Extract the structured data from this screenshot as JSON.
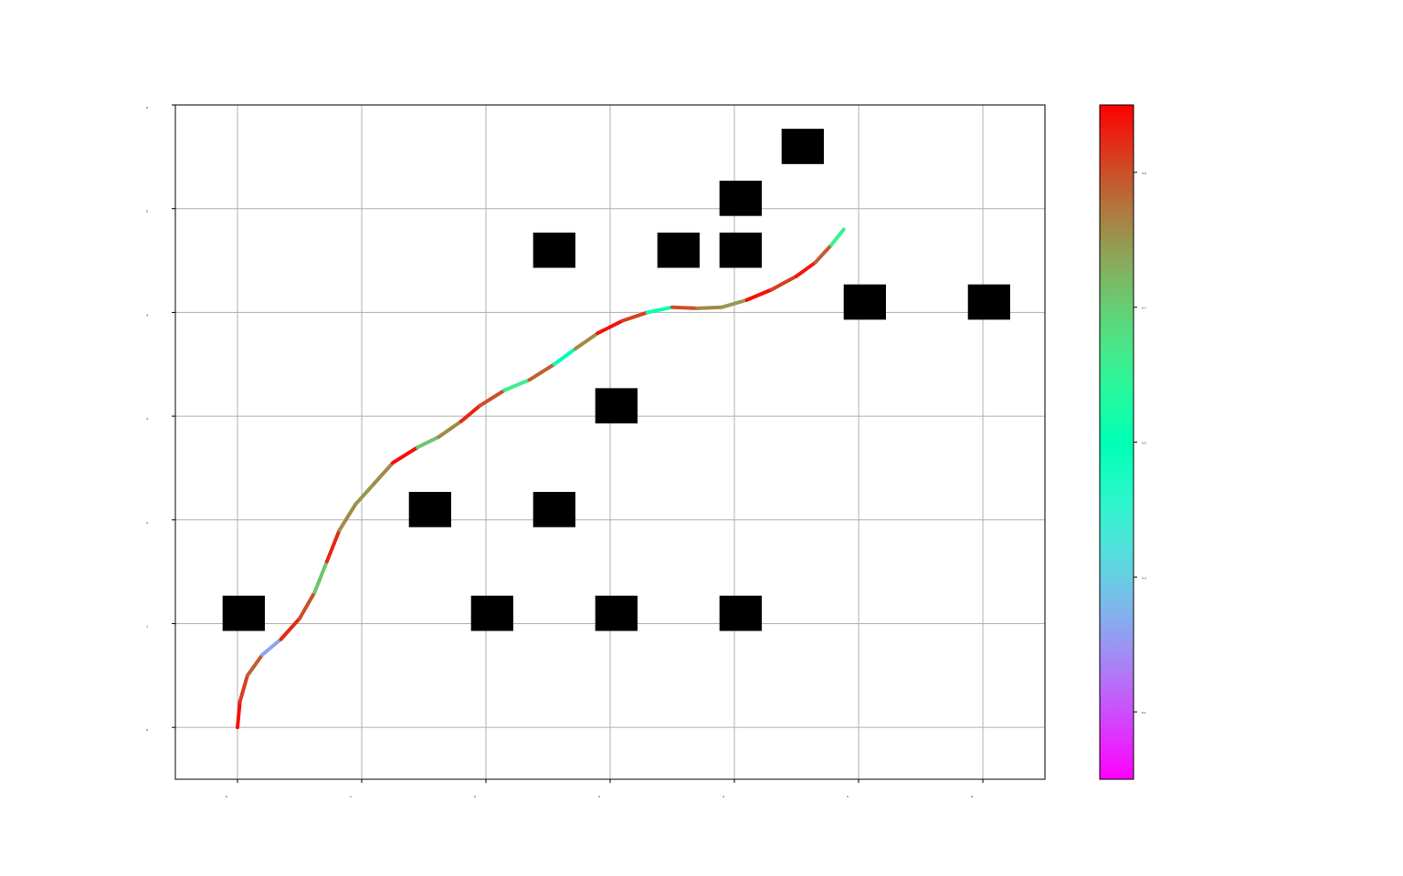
{
  "chart_data": {
    "type": "line",
    "title": "",
    "xlabel": "",
    "ylabel": "",
    "grid": true,
    "xlim": [
      -0.5,
      6.5
    ],
    "ylim": [
      -0.5,
      6.0
    ],
    "xticks": [
      0,
      1,
      2,
      3,
      4,
      5,
      6
    ],
    "yticks": [
      0,
      1,
      2,
      3,
      4,
      5,
      6
    ],
    "obstacles": [
      {
        "x": 0.05,
        "y": 1.1
      },
      {
        "x": 2.05,
        "y": 1.1
      },
      {
        "x": 3.05,
        "y": 1.1
      },
      {
        "x": 4.05,
        "y": 1.1
      },
      {
        "x": 1.55,
        "y": 2.1
      },
      {
        "x": 2.55,
        "y": 2.1
      },
      {
        "x": 3.05,
        "y": 3.1
      },
      {
        "x": 5.05,
        "y": 4.1
      },
      {
        "x": 6.05,
        "y": 4.1
      },
      {
        "x": 2.55,
        "y": 4.6
      },
      {
        "x": 3.55,
        "y": 4.6
      },
      {
        "x": 4.05,
        "y": 4.6
      },
      {
        "x": 4.05,
        "y": 5.1
      },
      {
        "x": 4.55,
        "y": 5.6
      }
    ],
    "path": {
      "x": [
        0.0,
        0.02,
        0.08,
        0.2,
        0.35,
        0.5,
        0.62,
        0.72,
        0.82,
        0.95,
        1.1,
        1.25,
        1.45,
        1.62,
        1.8,
        1.95,
        2.15,
        2.35,
        2.55,
        2.72,
        2.9,
        3.1,
        3.3,
        3.5,
        3.7,
        3.9,
        4.1,
        4.3,
        4.5,
        4.65,
        4.78,
        4.88
      ],
      "y": [
        0.0,
        0.25,
        0.5,
        0.7,
        0.85,
        1.05,
        1.3,
        1.6,
        1.9,
        2.15,
        2.35,
        2.55,
        2.7,
        2.8,
        2.95,
        3.1,
        3.25,
        3.35,
        3.5,
        3.65,
        3.8,
        3.92,
        4.0,
        4.05,
        4.04,
        4.05,
        4.12,
        4.22,
        4.35,
        4.48,
        4.65,
        4.8
      ],
      "color_values": [
        0.98,
        0.92,
        0.88,
        0.22,
        0.95,
        0.9,
        0.72,
        0.95,
        0.82,
        0.8,
        0.82,
        0.98,
        0.72,
        0.82,
        0.95,
        0.9,
        0.62,
        0.88,
        0.5,
        0.82,
        0.98,
        0.92,
        0.52,
        0.9,
        0.82,
        0.8,
        0.98,
        0.92,
        0.97,
        0.88,
        0.6,
        0.55
      ]
    },
    "colorbar": {
      "colormap": "rainbow",
      "range": [
        0,
        1
      ],
      "ticks": [
        0.1,
        0.3,
        0.5,
        0.7,
        0.9
      ]
    }
  },
  "colors": {
    "obstacle": "#000000",
    "grid": "#b0b0b0",
    "axes": "#000000"
  }
}
